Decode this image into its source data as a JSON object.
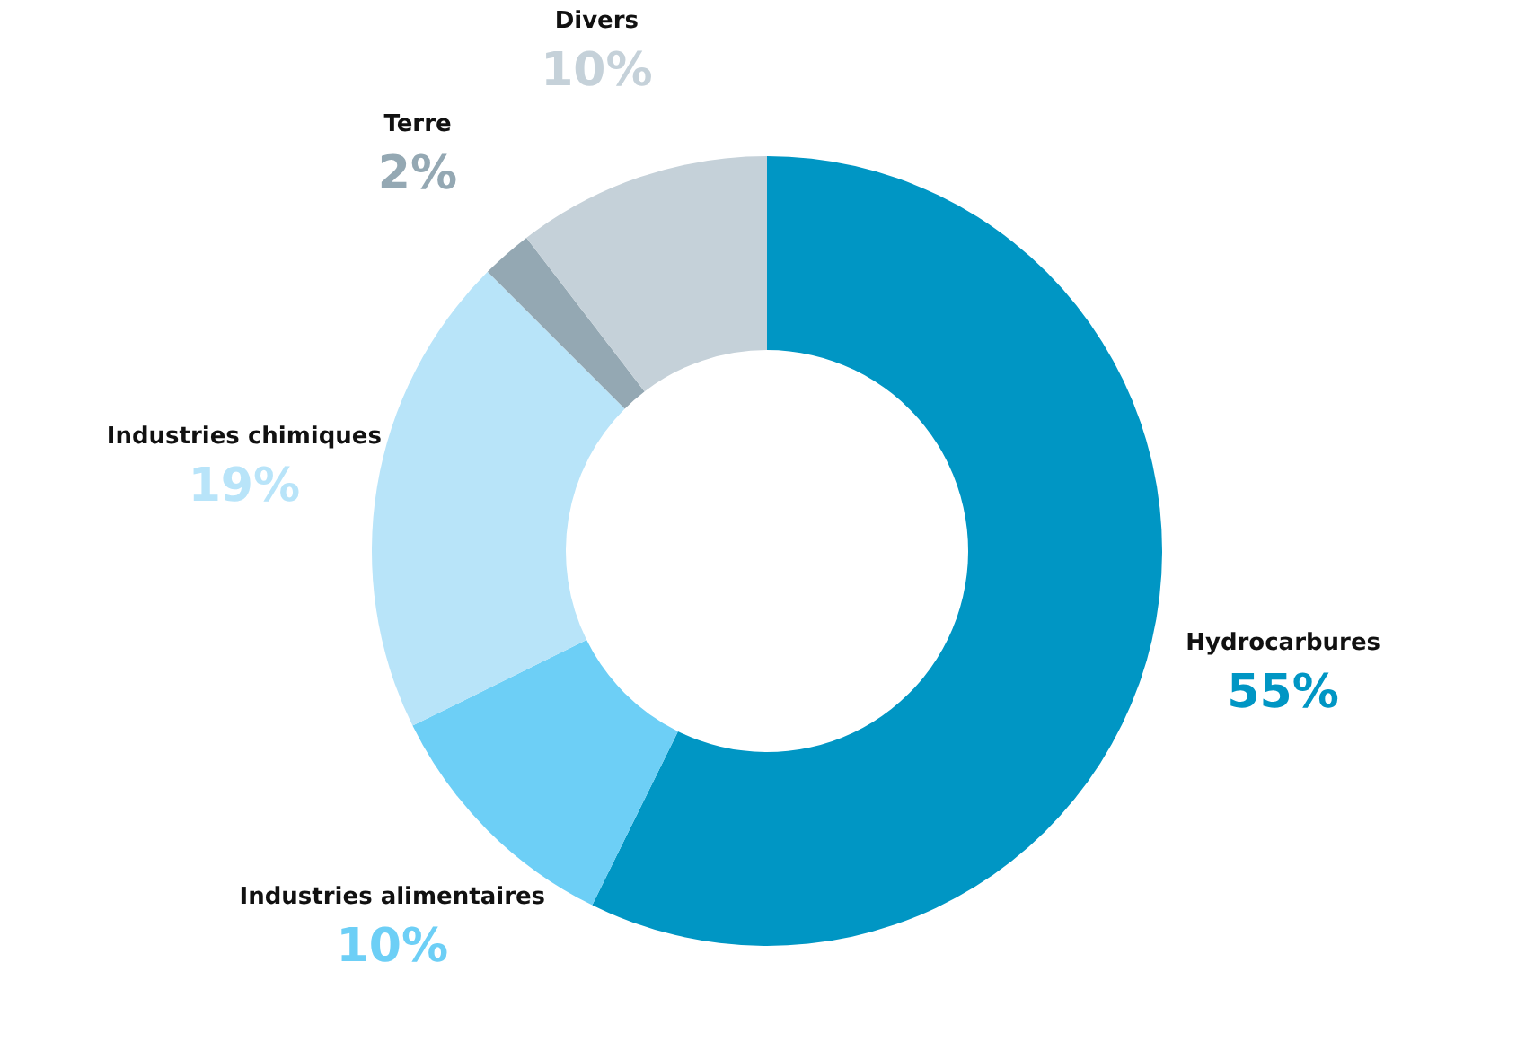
{
  "chart_data": {
    "type": "donut",
    "categories": [
      "Hydrocarbures",
      "Industries alimentaires",
      "Industries chimiques",
      "Terre",
      "Divers"
    ],
    "values": [
      55,
      10,
      19,
      2,
      10
    ],
    "value_labels": [
      "55%",
      "10%",
      "19%",
      "2%",
      "10%"
    ],
    "colors": [
      "#0096c4",
      "#6dcff6",
      "#b8e4f9",
      "#94a8b3",
      "#c5d1d9"
    ]
  }
}
